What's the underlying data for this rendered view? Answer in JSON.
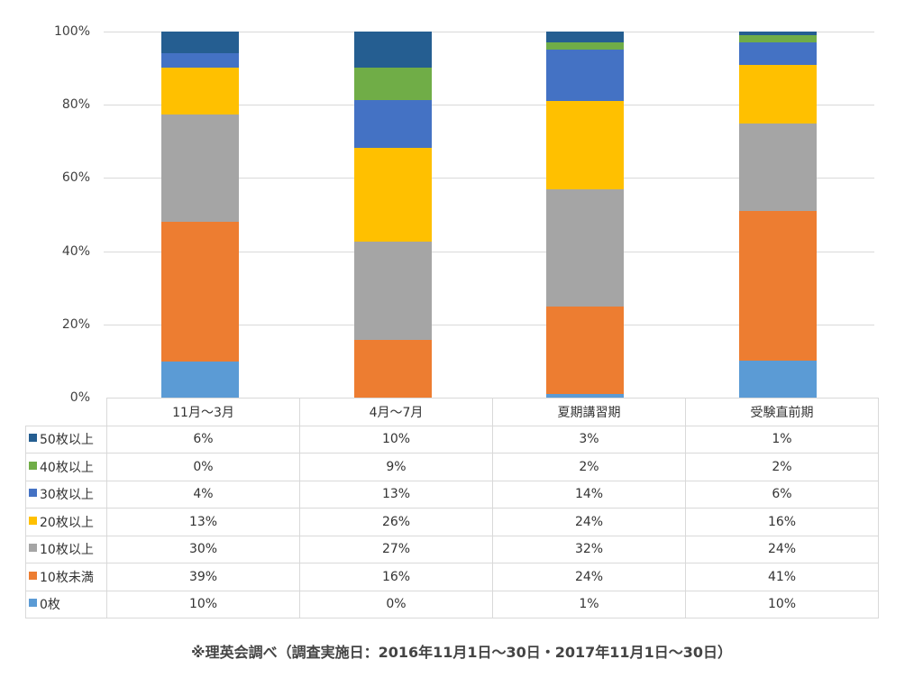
{
  "chart_data": {
    "type": "bar",
    "stacked": true,
    "normalized": true,
    "title": "",
    "xlabel": "",
    "ylabel": "",
    "ylim": [
      0,
      100
    ],
    "y_ticks": [
      "0%",
      "20%",
      "40%",
      "60%",
      "80%",
      "100%"
    ],
    "grid": true,
    "legend_position": "data-table-left",
    "categories": [
      "11月～3月",
      "4月～7月",
      "夏期講習期",
      "受験直前期"
    ],
    "series": [
      {
        "name": "0枚",
        "color": "#5b9bd5",
        "values": [
          10,
          0,
          1,
          10
        ]
      },
      {
        "name": "10枚未満",
        "color": "#ed7d31",
        "values": [
          39,
          16,
          24,
          41
        ]
      },
      {
        "name": "10枚以上",
        "color": "#a5a5a5",
        "values": [
          30,
          27,
          32,
          24
        ]
      },
      {
        "name": "20枚以上",
        "color": "#ffc000",
        "values": [
          13,
          26,
          24,
          16
        ]
      },
      {
        "name": "30枚以上",
        "color": "#4472c4",
        "values": [
          4,
          13,
          14,
          6
        ]
      },
      {
        "name": "40枚以上",
        "color": "#70ad47",
        "values": [
          0,
          9,
          2,
          2
        ]
      },
      {
        "name": "50枚以上",
        "color": "#255e91",
        "values": [
          6,
          10,
          3,
          1
        ]
      }
    ],
    "data_table": {
      "header": [
        "11月～3月",
        "4月～7月",
        "夏期講習期",
        "受験直前期"
      ],
      "rows": [
        {
          "label": "50枚以上",
          "color": "#255e91",
          "cells": [
            "6%",
            "10%",
            "3%",
            "1%"
          ]
        },
        {
          "label": "40枚以上",
          "color": "#70ad47",
          "cells": [
            "0%",
            "9%",
            "2%",
            "2%"
          ]
        },
        {
          "label": "30枚以上",
          "color": "#4472c4",
          "cells": [
            "4%",
            "13%",
            "14%",
            "6%"
          ]
        },
        {
          "label": "20枚以上",
          "color": "#ffc000",
          "cells": [
            "13%",
            "26%",
            "24%",
            "16%"
          ]
        },
        {
          "label": "10枚以上",
          "color": "#a5a5a5",
          "cells": [
            "30%",
            "27%",
            "32%",
            "24%"
          ]
        },
        {
          "label": "10枚未満",
          "color": "#ed7d31",
          "cells": [
            "39%",
            "16%",
            "24%",
            "41%"
          ]
        },
        {
          "label": "0枚",
          "color": "#5b9bd5",
          "cells": [
            "10%",
            "0%",
            "1%",
            "10%"
          ]
        }
      ]
    },
    "annotations": [
      "※理英会調べ（調査実施日：2016年11月1日～30日・2017年11月1日～30日）"
    ]
  },
  "axis": {
    "y_labels": [
      "100%",
      "80%",
      "60%",
      "40%",
      "20%",
      "0%"
    ]
  },
  "footer": {
    "note": "※理英会調べ（調査実施日：2016年11月1日～30日・2017年11月1日～30日）"
  }
}
